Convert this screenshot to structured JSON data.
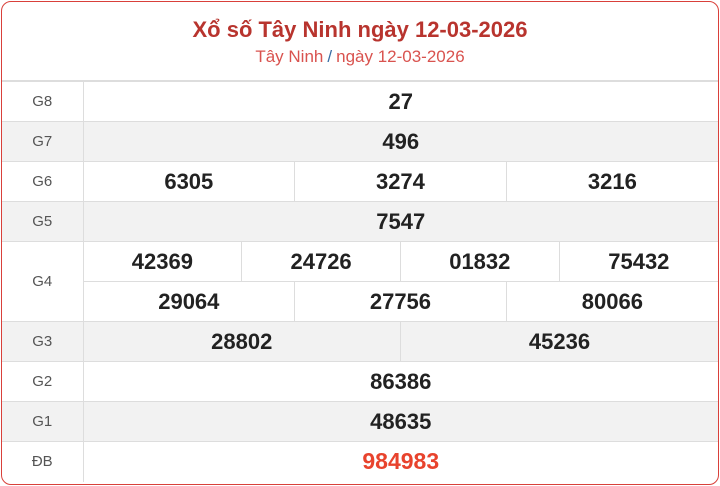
{
  "header": {
    "title": "Xổ số Tây Ninh ngày 12-03-2026",
    "breadcrumb_province": "Tây Ninh",
    "breadcrumb_separator": "/",
    "breadcrumb_date": "ngày 12-03-2026"
  },
  "prizes": {
    "g8": {
      "label": "G8",
      "numbers": [
        "27"
      ]
    },
    "g7": {
      "label": "G7",
      "numbers": [
        "496"
      ]
    },
    "g6": {
      "label": "G6",
      "numbers": [
        "6305",
        "3274",
        "3216"
      ]
    },
    "g5": {
      "label": "G5",
      "numbers": [
        "7547"
      ]
    },
    "g4": {
      "label": "G4",
      "numbers": [
        "42369",
        "24726",
        "01832",
        "75432",
        "29064",
        "27756",
        "80066"
      ]
    },
    "g3": {
      "label": "G3",
      "numbers": [
        "28802",
        "45236"
      ]
    },
    "g2": {
      "label": "G2",
      "numbers": [
        "86386"
      ]
    },
    "g1": {
      "label": "G1",
      "numbers": [
        "48635"
      ]
    },
    "db": {
      "label": "ĐB",
      "numbers": [
        "984983"
      ]
    }
  },
  "colors": {
    "accent": "#b8342e",
    "special": "#e8432d",
    "border": "#d9403a"
  }
}
